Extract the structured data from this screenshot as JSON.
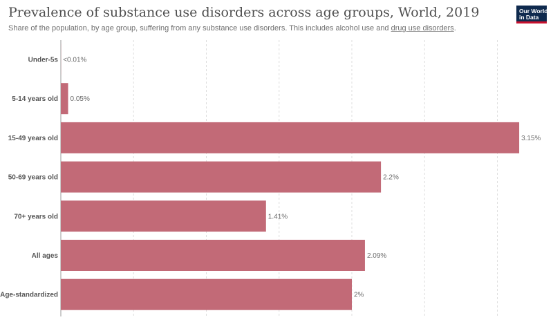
{
  "header": {
    "title": "Prevalence of substance use disorders across age groups, World, 2019",
    "subtitle_text": "Share of the population, by age group, suffering from any substance use disorders. This includes alcohol use and ",
    "subtitle_link": "drug use disorders",
    "subtitle_end": "."
  },
  "logo": {
    "line1": "Our World",
    "line2": "in Data"
  },
  "colors": {
    "bar": "#c26a77",
    "gridline": "#dddddd",
    "axis": "#999999"
  },
  "chart_data": {
    "type": "bar",
    "orientation": "horizontal",
    "title": "Prevalence of substance use disorders across age groups, World, 2019",
    "categories": [
      "Under-5s",
      "5-14 years old",
      "15-49 years old",
      "50-69 years old",
      "70+ years old",
      "All ages",
      "Age-standardized"
    ],
    "values": [
      0.001,
      0.05,
      3.15,
      2.2,
      1.41,
      2.09,
      2.0
    ],
    "value_labels": [
      "<0.01%",
      "0.05%",
      "3.15%",
      "2.2%",
      "1.41%",
      "2.09%",
      "2%"
    ],
    "unit": "%",
    "xlim": [
      0,
      3.0
    ],
    "grid": true
  }
}
